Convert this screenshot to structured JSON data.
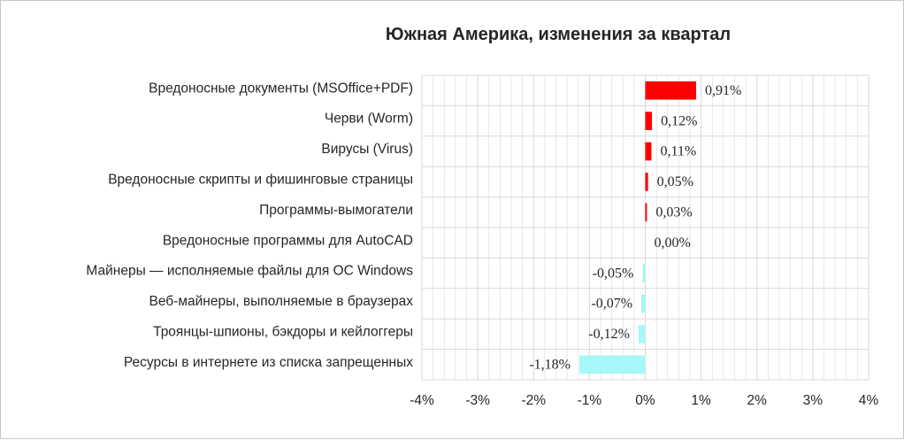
{
  "chart_data": {
    "type": "bar",
    "orientation": "horizontal",
    "title": "Южная Америка, изменения за квартал",
    "xlabel": "",
    "ylabel": "",
    "xlim": [
      -4,
      4
    ],
    "x_ticks": [
      -4,
      -3,
      -2,
      -1,
      0,
      1,
      2,
      3,
      4
    ],
    "x_tick_labels": [
      "-4%",
      "-3%",
      "-2%",
      "-1%",
      "0%",
      "1%",
      "2%",
      "3%",
      "4%"
    ],
    "grid": true,
    "legend": "none",
    "categories": [
      "Вредоносные документы (MSOffice+PDF)",
      "Черви (Worm)",
      "Вирусы (Virus)",
      "Вредоносные скрипты и фишинговые страницы",
      "Программы-вымогатели",
      "Вредоносные программы для AutoCAD",
      "Майнеры — исполняемые файлы для ОС Windows",
      "Веб-майнеры, выполняемые в браузерах",
      "Троянцы-шпионы, бэкдоры и кейлоггеры",
      "Ресурсы в интернете из списка запрещенных"
    ],
    "values": [
      0.91,
      0.12,
      0.11,
      0.05,
      0.03,
      0.0,
      -0.05,
      -0.07,
      -0.12,
      -1.18
    ],
    "data_labels": [
      "0,91%",
      "0,12%",
      "0,11%",
      "0,05%",
      "0,03%",
      "0,00%",
      "-0,05%",
      "-0,07%",
      "-0,12%",
      "-1,18%"
    ],
    "colors": {
      "positive": "#ff0000",
      "negative": "#a6f7f7",
      "grid": "#d9d9d9",
      "text": "#262626"
    }
  }
}
